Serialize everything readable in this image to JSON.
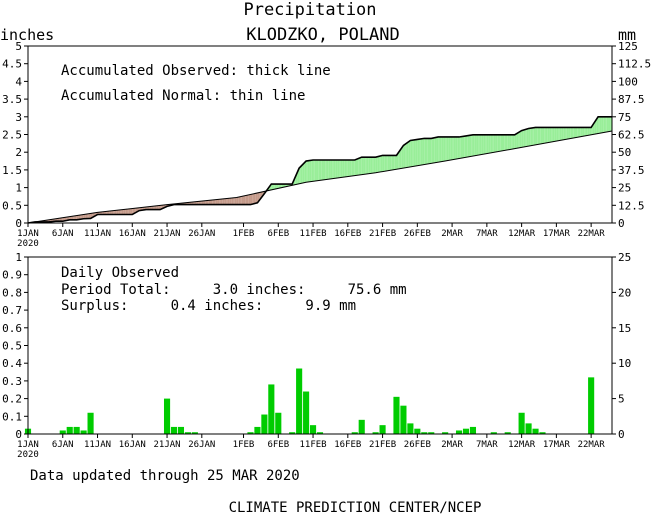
{
  "header": {
    "title": "Precipitation",
    "location": "KLODZKO, POLAND",
    "left_unit": "inches",
    "right_unit": "mm"
  },
  "footer": {
    "updated": "Data updated through 25 MAR 2020",
    "credit": "CLIMATE PREDICTION CENTER/NCEP"
  },
  "colors": {
    "surplus_fill": "#99ee99",
    "deficit_fill": "#c49a8a",
    "bar_fill": "#00cc00",
    "line": "#000000"
  },
  "x_axis": {
    "ticks": [
      {
        "day": 1,
        "label": "1JAN"
      },
      {
        "day": 6,
        "label": "6JAN"
      },
      {
        "day": 11,
        "label": "11JAN"
      },
      {
        "day": 16,
        "label": "16JAN"
      },
      {
        "day": 21,
        "label": "21JAN"
      },
      {
        "day": 26,
        "label": "26JAN"
      },
      {
        "day": 32,
        "label": "1FEB"
      },
      {
        "day": 37,
        "label": "6FEB"
      },
      {
        "day": 42,
        "label": "11FEB"
      },
      {
        "day": 47,
        "label": "16FEB"
      },
      {
        "day": 52,
        "label": "21FEB"
      },
      {
        "day": 57,
        "label": "26FEB"
      },
      {
        "day": 62,
        "label": "2MAR"
      },
      {
        "day": 67,
        "label": "7MAR"
      },
      {
        "day": 72,
        "label": "12MAR"
      },
      {
        "day": 77,
        "label": "17MAR"
      },
      {
        "day": 82,
        "label": "22MAR"
      }
    ],
    "year_label": "2020"
  },
  "chart_data": [
    {
      "type": "area",
      "legend": [
        "Accumulated Observed: thick line",
        "Accumulated Normal: thin line"
      ],
      "x_unit": "day of 2020",
      "xlim": [
        1,
        85
      ],
      "ylim": [
        0,
        5
      ],
      "y_ticks": [
        "0",
        "0.5",
        "1",
        "1.5",
        "2",
        "2.5",
        "3",
        "3.5",
        "4",
        "4.5",
        "5"
      ],
      "y2_ticks": [
        "0",
        "12.5",
        "25",
        "37.5",
        "50",
        "62.5",
        "75",
        "87.5",
        "100",
        "112.5",
        "125"
      ],
      "observed": {
        "x": [
          1,
          2,
          4,
          5,
          6,
          7,
          8,
          9,
          10,
          11,
          16,
          17,
          18,
          19,
          20,
          21,
          22,
          33,
          34,
          35,
          36,
          39,
          40,
          41,
          42,
          43,
          48,
          49,
          51,
          52,
          54,
          55,
          56,
          57,
          58,
          59,
          60,
          61,
          63,
          64,
          65,
          66,
          67,
          68,
          71,
          72,
          73,
          74,
          75,
          77,
          78,
          82,
          83,
          85
        ],
        "y": [
          0.0,
          0.03,
          0.03,
          0.05,
          0.05,
          0.09,
          0.09,
          0.12,
          0.13,
          0.24,
          0.24,
          0.35,
          0.38,
          0.38,
          0.38,
          0.47,
          0.52,
          0.52,
          0.57,
          0.83,
          1.1,
          1.1,
          1.55,
          1.75,
          1.78,
          1.78,
          1.78,
          1.86,
          1.86,
          1.91,
          1.91,
          2.19,
          2.33,
          2.36,
          2.39,
          2.39,
          2.43,
          2.43,
          2.43,
          2.46,
          2.49,
          2.49,
          2.49,
          2.49,
          2.49,
          2.61,
          2.67,
          2.7,
          2.7,
          2.7,
          2.7,
          2.7,
          3.0,
          3.0
        ]
      },
      "normal": {
        "x": [
          1,
          11,
          21,
          31,
          41,
          51,
          61,
          71,
          85
        ],
        "y": [
          0.0,
          0.3,
          0.52,
          0.72,
          1.15,
          1.42,
          1.75,
          2.1,
          2.6
        ]
      }
    },
    {
      "type": "bar",
      "legend": [
        "Daily Observed"
      ],
      "stats": {
        "period_total": "Period Total:     3.0 inches:     75.6 mm",
        "surplus": "Surplus:     0.4 inches:     9.9 mm"
      },
      "x_unit": "day of 2020",
      "xlim": [
        1,
        85
      ],
      "ylim": [
        0,
        1
      ],
      "y_ticks": [
        "0",
        "0.1",
        "0.2",
        "0.3",
        "0.4",
        "0.5",
        "0.6",
        "0.7",
        "0.8",
        "0.9",
        "1"
      ],
      "y2_ticks": [
        "0",
        "5",
        "10",
        "15",
        "20",
        "25"
      ],
      "days": [
        1,
        6,
        7,
        8,
        9,
        10,
        21,
        22,
        23,
        24,
        25,
        33,
        34,
        35,
        36,
        37,
        39,
        40,
        41,
        42,
        43,
        48,
        49,
        51,
        52,
        54,
        55,
        56,
        57,
        58,
        59,
        61,
        63,
        64,
        65,
        68,
        70,
        72,
        73,
        74,
        75,
        82
      ],
      "values": [
        0.03,
        0.02,
        0.04,
        0.04,
        0.02,
        0.12,
        0.2,
        0.04,
        0.04,
        0.01,
        0.01,
        0.01,
        0.04,
        0.11,
        0.28,
        0.12,
        0.01,
        0.37,
        0.24,
        0.05,
        0.01,
        0.01,
        0.08,
        0.01,
        0.05,
        0.21,
        0.16,
        0.06,
        0.03,
        0.01,
        0.01,
        0.01,
        0.02,
        0.03,
        0.04,
        0.01,
        0.01,
        0.12,
        0.06,
        0.03,
        0.01,
        0.32
      ]
    }
  ]
}
